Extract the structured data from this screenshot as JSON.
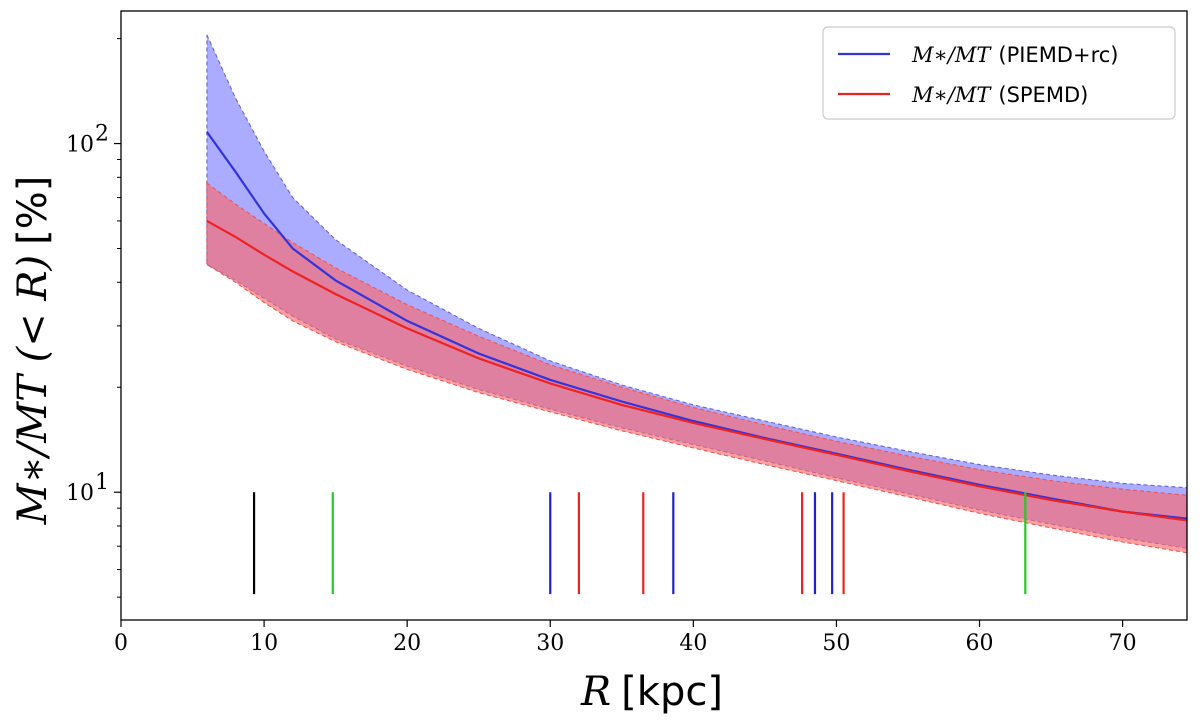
{
  "chart_data": {
    "type": "line",
    "xlabel_math": "R",
    "xlabel_unit": "[kpc]",
    "ylabel_math": "M∗/MT (< R)",
    "ylabel_unit": "[%]",
    "xlim": [
      0,
      74.5
    ],
    "ylim": [
      4.3,
      240
    ],
    "yscale": "log",
    "grid": false,
    "legend_position": "top-right",
    "x_ticks": [
      0,
      10,
      20,
      30,
      40,
      50,
      60,
      70
    ],
    "x_tick_labels": [
      "0",
      "10",
      "20",
      "30",
      "40",
      "50",
      "60",
      "70"
    ],
    "y_ticks": [
      {
        "value": 10,
        "base": "10",
        "exp": "1"
      },
      {
        "value": 100,
        "base": "10",
        "exp": "2"
      }
    ],
    "series": [
      {
        "label_math": "M∗/MT",
        "label_text": "(PIEMD+rc)",
        "color": "#3333dd",
        "band_color": "#7777ff",
        "band_edge_color": "#6666cc",
        "x": [
          6,
          8,
          10,
          12,
          15,
          20,
          25,
          30,
          35,
          40,
          45,
          50,
          55,
          60,
          65,
          70,
          74.5
        ],
        "y": [
          108,
          83,
          63,
          50,
          40.5,
          31,
          25,
          21,
          18.2,
          16,
          14.3,
          12.9,
          11.6,
          10.5,
          9.6,
          8.8,
          8.4
        ],
        "upper": [
          205,
          135,
          95,
          70,
          53,
          38,
          29.5,
          23.8,
          20.3,
          17.8,
          16,
          14.4,
          13.1,
          12,
          11.2,
          10.6,
          10.3
        ],
        "lower": [
          45,
          40.5,
          36,
          32,
          27.5,
          23,
          19.7,
          17.3,
          15.3,
          13.7,
          12.3,
          11,
          9.9,
          8.9,
          8.1,
          7.4,
          6.9
        ]
      },
      {
        "label_math": "M∗/MT",
        "label_text": "(SPEMD)",
        "color": "#ee2222",
        "band_color": "#ff6666",
        "band_edge_color": "#ee5555",
        "x": [
          6,
          8,
          10,
          12,
          15,
          20,
          25,
          30,
          35,
          40,
          45,
          50,
          55,
          60,
          65,
          70,
          74.5
        ],
        "y": [
          60,
          54,
          48,
          43,
          37,
          29.5,
          24.2,
          20.5,
          17.8,
          15.8,
          14.2,
          12.8,
          11.5,
          10.4,
          9.5,
          8.8,
          8.3
        ],
        "upper": [
          77,
          67,
          59,
          52,
          44,
          34.5,
          28,
          23.2,
          20,
          17.5,
          15.6,
          14,
          12.7,
          11.6,
          10.8,
          10.2,
          9.8
        ],
        "lower": [
          45,
          40,
          35,
          31,
          27,
          22.5,
          19.3,
          17,
          15,
          13.4,
          12,
          10.8,
          9.7,
          8.7,
          7.9,
          7.2,
          6.7
        ]
      }
    ],
    "vertical_markers": [
      {
        "x": 9.3,
        "color": "#000000"
      },
      {
        "x": 14.8,
        "color": "#22cc22"
      },
      {
        "x": 30.0,
        "color": "#2222cc"
      },
      {
        "x": 32.0,
        "color": "#ee2222"
      },
      {
        "x": 36.5,
        "color": "#ee2222"
      },
      {
        "x": 38.6,
        "color": "#2222cc"
      },
      {
        "x": 47.6,
        "color": "#ee2222"
      },
      {
        "x": 48.5,
        "color": "#2222cc"
      },
      {
        "x": 49.7,
        "color": "#2222cc"
      },
      {
        "x": 50.5,
        "color": "#ee2222"
      },
      {
        "x": 63.2,
        "color": "#22cc22"
      }
    ],
    "marker_y_range": [
      5.1,
      10
    ]
  }
}
